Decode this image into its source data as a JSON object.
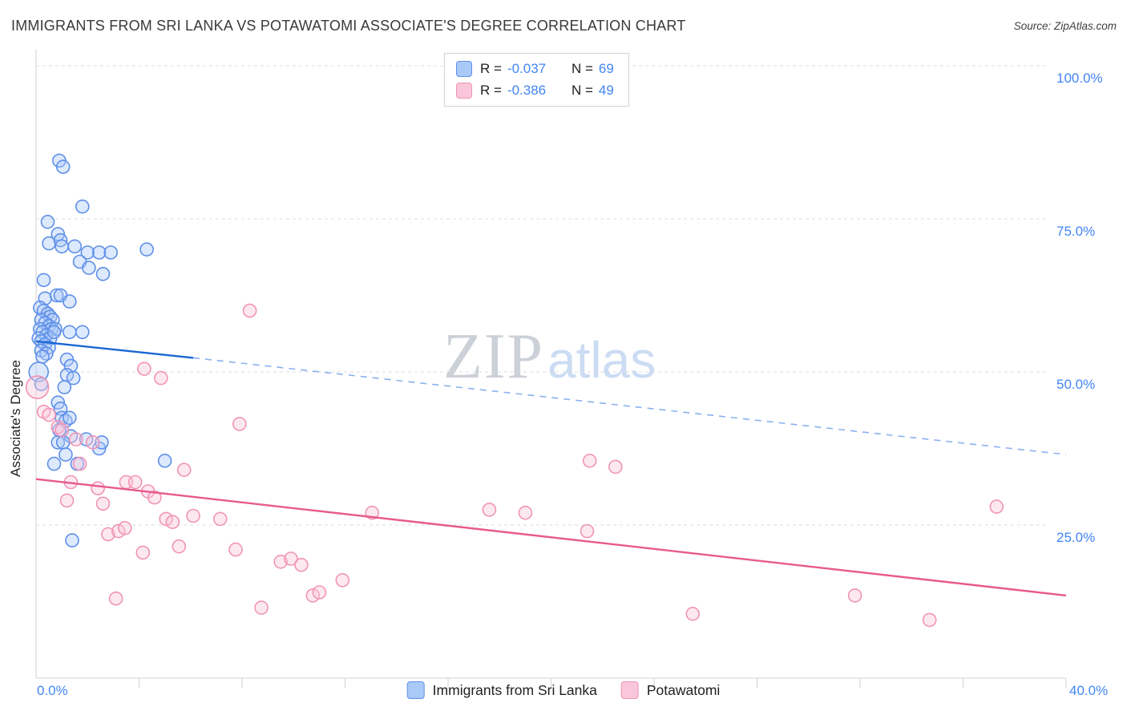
{
  "header": {
    "title": "IMMIGRANTS FROM SRI LANKA VS POTAWATOMI ASSOCIATE'S DEGREE CORRELATION CHART",
    "source": "Source: ZipAtlas.com"
  },
  "watermark": {
    "zip": "ZIP",
    "atlas": "atlas"
  },
  "axes": {
    "y_label": "Associate's Degree",
    "y_ticks": [
      "100.0%",
      "75.0%",
      "50.0%",
      "25.0%"
    ],
    "x_min_label": "0.0%",
    "x_max_label": "40.0%"
  },
  "legend_box": {
    "rows": [
      {
        "r_label": "R =",
        "r_value": "-0.037",
        "n_label": "N =",
        "n_value": "69",
        "swatch": {
          "fill": "#a9c9f8",
          "stroke": "#5e8fe8"
        }
      },
      {
        "r_label": "R =",
        "r_value": "-0.386",
        "n_label": "N =",
        "n_value": "49",
        "swatch": {
          "fill": "#f9c6da",
          "stroke": "#f094b5"
        }
      }
    ]
  },
  "bottom_legend": {
    "items": [
      {
        "label": "Immigrants from Sri Lanka",
        "swatch": {
          "fill": "#a9c9f8",
          "stroke": "#5e8fe8"
        }
      },
      {
        "label": "Potawatomi",
        "swatch": {
          "fill": "#f9c6da",
          "stroke": "#f094b5"
        }
      }
    ]
  },
  "chart_data": {
    "type": "scatter",
    "title": "IMMIGRANTS FROM SRI LANKA VS POTAWATOMI ASSOCIATE'S DEGREE CORRELATION CHART",
    "xlabel": "",
    "ylabel": "Associate's Degree",
    "xlim": [
      0,
      40
    ],
    "ylim": [
      0,
      100
    ],
    "x_unit": "percent",
    "y_unit": "percent",
    "grid": true,
    "y_gridlines": [
      25,
      50,
      75,
      100
    ],
    "x_ticks": [
      4,
      8,
      12,
      16,
      20,
      24,
      28,
      32,
      36,
      40
    ],
    "series": [
      {
        "name": "Immigrants from Sri Lanka",
        "slug": "sri-lanka",
        "fill": "#a9c9f8",
        "stroke": "#5e8fe8",
        "r": -0.037,
        "n": 69,
        "points": [
          [
            0.9,
            84.5
          ],
          [
            1.05,
            83.5
          ],
          [
            1.8,
            77
          ],
          [
            0.45,
            74.5
          ],
          [
            0.5,
            71
          ],
          [
            0.85,
            72.5
          ],
          [
            0.95,
            71.5
          ],
          [
            1.0,
            70.5
          ],
          [
            1.5,
            70.5
          ],
          [
            2.0,
            69.5
          ],
          [
            2.45,
            69.5
          ],
          [
            2.9,
            69.5
          ],
          [
            4.3,
            70
          ],
          [
            1.7,
            68
          ],
          [
            2.05,
            67
          ],
          [
            2.6,
            66
          ],
          [
            0.3,
            65
          ],
          [
            0.35,
            62
          ],
          [
            0.8,
            62.5
          ],
          [
            0.95,
            62.5
          ],
          [
            1.3,
            61.5
          ],
          [
            0.15,
            60.5
          ],
          [
            0.3,
            60
          ],
          [
            0.45,
            59.5
          ],
          [
            0.55,
            59
          ],
          [
            0.65,
            58.5
          ],
          [
            0.2,
            58.5
          ],
          [
            0.35,
            58
          ],
          [
            0.5,
            57.5
          ],
          [
            0.6,
            57
          ],
          [
            0.75,
            57
          ],
          [
            0.15,
            57
          ],
          [
            0.25,
            56.5
          ],
          [
            0.4,
            56
          ],
          [
            0.55,
            55.5
          ],
          [
            0.7,
            56.5
          ],
          [
            1.3,
            56.5
          ],
          [
            1.8,
            56.5
          ],
          [
            0.1,
            55.5
          ],
          [
            0.2,
            55
          ],
          [
            0.35,
            54.5
          ],
          [
            0.5,
            54
          ],
          [
            0.2,
            53.5
          ],
          [
            0.4,
            53
          ],
          [
            0.25,
            52.5
          ],
          [
            1.2,
            52
          ],
          [
            1.35,
            51
          ],
          [
            0.1,
            50,
            12
          ],
          [
            1.2,
            49.5
          ],
          [
            1.45,
            49
          ],
          [
            0.2,
            48
          ],
          [
            1.1,
            47.5
          ],
          [
            0.85,
            45
          ],
          [
            0.95,
            44
          ],
          [
            1.0,
            42.5
          ],
          [
            1.15,
            42
          ],
          [
            1.3,
            42.5
          ],
          [
            0.9,
            40.5
          ],
          [
            1.35,
            39.5
          ],
          [
            1.95,
            39
          ],
          [
            0.85,
            38.5
          ],
          [
            1.05,
            38.5
          ],
          [
            1.15,
            36.5
          ],
          [
            2.45,
            37.5
          ],
          [
            2.55,
            38.5
          ],
          [
            5.0,
            35.5
          ],
          [
            0.7,
            35
          ],
          [
            1.6,
            35
          ],
          [
            1.4,
            22.5
          ]
        ]
      },
      {
        "name": "Potawatomi",
        "slug": "potawatomi",
        "fill": "#f9c6da",
        "stroke": "#f094b5",
        "r": -0.386,
        "n": 49,
        "points": [
          [
            0.05,
            47.5,
            14
          ],
          [
            0.3,
            43.5
          ],
          [
            0.5,
            43
          ],
          [
            0.85,
            41
          ],
          [
            1.0,
            40.5
          ],
          [
            1.55,
            39
          ],
          [
            2.2,
            38.5
          ],
          [
            1.7,
            35
          ],
          [
            1.35,
            32
          ],
          [
            1.2,
            29
          ],
          [
            2.4,
            31
          ],
          [
            2.6,
            28.5
          ],
          [
            3.5,
            32
          ],
          [
            3.85,
            32
          ],
          [
            4.35,
            30.5
          ],
          [
            4.6,
            29.5
          ],
          [
            2.8,
            23.5
          ],
          [
            3.2,
            24
          ],
          [
            3.45,
            24.5
          ],
          [
            3.1,
            13
          ],
          [
            4.15,
            20.5
          ],
          [
            5.05,
            26
          ],
          [
            5.3,
            25.5
          ],
          [
            5.55,
            21.5
          ],
          [
            6.1,
            26.5
          ],
          [
            7.15,
            26
          ],
          [
            5.75,
            34
          ],
          [
            4.2,
            50.5
          ],
          [
            4.85,
            49
          ],
          [
            7.9,
            41.5
          ],
          [
            8.3,
            60
          ],
          [
            7.75,
            21
          ],
          [
            8.75,
            11.5
          ],
          [
            9.5,
            19
          ],
          [
            9.9,
            19.5
          ],
          [
            10.3,
            18.5
          ],
          [
            10.75,
            13.5
          ],
          [
            11.0,
            14
          ],
          [
            11.9,
            16
          ],
          [
            13.05,
            27
          ],
          [
            17.6,
            27.5
          ],
          [
            19.0,
            27
          ],
          [
            21.5,
            35.5
          ],
          [
            22.5,
            34.5
          ],
          [
            21.4,
            24
          ],
          [
            25.5,
            10.5
          ],
          [
            31.8,
            13.5
          ],
          [
            34.7,
            9.5
          ],
          [
            37.3,
            28
          ]
        ]
      }
    ],
    "trend_lines": [
      {
        "series": "Immigrants from Sri Lanka",
        "slug": "sri-lanka",
        "color": "#1967d2",
        "dash_color": "#6d9eeb",
        "solid": [
          [
            0,
            55
          ],
          [
            6.1,
            52.3
          ]
        ],
        "dashed": [
          [
            6.1,
            52.3
          ],
          [
            40,
            36.5
          ]
        ]
      },
      {
        "series": "Potawatomi",
        "slug": "potawatomi",
        "color": "#e75a8d",
        "solid": [
          [
            0,
            32.5
          ],
          [
            40,
            13.5
          ]
        ]
      }
    ],
    "legend_position": "bottom-center"
  },
  "colors": {
    "axis_label_blue": "#4285f4",
    "grid": "#dadce0",
    "axis_line": "#cfd2d6",
    "title_text": "#37393b"
  }
}
